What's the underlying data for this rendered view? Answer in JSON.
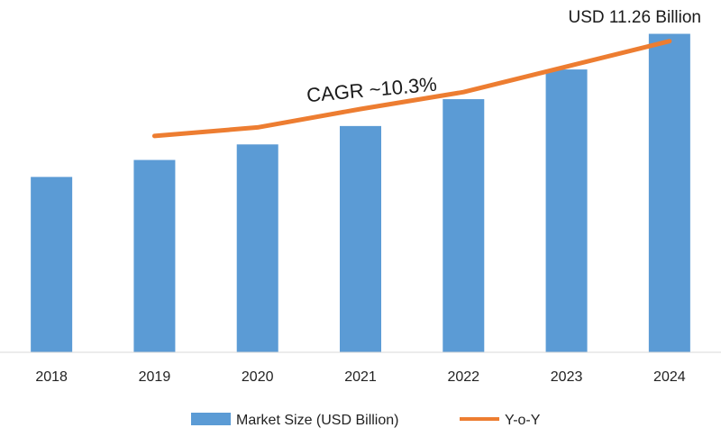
{
  "chart_data": {
    "type": "bar",
    "categories": [
      "2018",
      "2019",
      "2020",
      "2021",
      "2022",
      "2023",
      "2024"
    ],
    "series": [
      {
        "name": "Market Size (USD Billion)",
        "type": "bar",
        "color": "#5b9bd5",
        "values": [
          6.2,
          6.8,
          7.35,
          8.0,
          8.95,
          10.0,
          11.26
        ]
      },
      {
        "name": "Y-o-Y",
        "type": "line",
        "color": "#ed7d31",
        "values": [
          null,
          7.65,
          7.95,
          8.6,
          9.2,
          10.1,
          11.0
        ]
      }
    ],
    "ylim": [
      0,
      11.5
    ],
    "annotations": {
      "cagr": "CAGR ~10.3%",
      "last_value": "USD 11.26 Billion"
    },
    "legend_position": "bottom",
    "grid": false
  }
}
